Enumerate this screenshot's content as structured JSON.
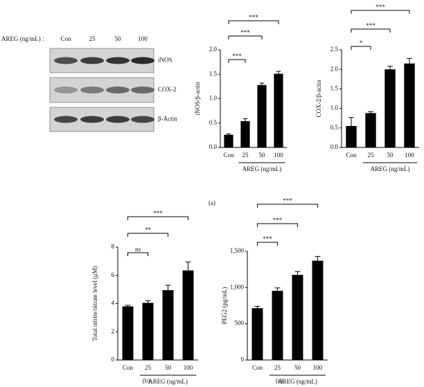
{
  "blot": {
    "dose_label": "AREG (ng/mL) :",
    "lanes": [
      "Con",
      "25",
      "50",
      "100"
    ],
    "rows": [
      "iNOS",
      "COX-2",
      "β-Actin"
    ]
  },
  "panel_labels": [
    "(a)",
    "(b)",
    "(c)"
  ],
  "chart_data": [
    {
      "type": "bar",
      "ylabel": "iNOS/β-actin",
      "xlabel": "AREG (ng/mL)",
      "categories": [
        "Con",
        "25",
        "50",
        "100"
      ],
      "values": [
        0.26,
        0.54,
        1.28,
        1.51
      ],
      "errors": [
        0.02,
        0.05,
        0.04,
        0.05
      ],
      "significance": [
        null,
        "***",
        "***",
        "***"
      ],
      "color": "#000000",
      "ylim": [
        0,
        2
      ],
      "yticks": [
        {
          "value": 0,
          "label": "0.0"
        },
        0.5,
        {
          "value": 1,
          "label": "1.0"
        },
        1.5,
        {
          "value": 2,
          "label": "2.0"
        }
      ]
    },
    {
      "type": "bar",
      "ylabel": "COX-2/β-actin",
      "xlabel": "AREG (ng/mL)",
      "categories": [
        "Con",
        "25",
        "50",
        "100"
      ],
      "values": [
        0.55,
        0.88,
        2.0,
        2.15
      ],
      "errors": [
        0.22,
        0.04,
        0.08,
        0.13
      ],
      "significance": [
        null,
        "*",
        "***",
        "***"
      ],
      "color": "#000000",
      "ylim": [
        0,
        2.5
      ],
      "yticks": [
        {
          "value": 0,
          "label": "0.0"
        },
        0.5,
        {
          "value": 1,
          "label": "1.0"
        },
        1.5,
        {
          "value": 2,
          "label": "2.0"
        },
        2.5
      ]
    },
    {
      "type": "bar",
      "ylabel": "Total nitrite/nitrate level (μM)",
      "xlabel": "AREG (ng/mL)",
      "categories": [
        "Con",
        "25",
        "50",
        "100"
      ],
      "values": [
        3.8,
        4.05,
        4.95,
        6.35
      ],
      "errors": [
        0.08,
        0.15,
        0.35,
        0.6
      ],
      "significance": [
        null,
        "ns",
        "**",
        "***"
      ],
      "color": "#000000",
      "ylim": [
        0,
        8
      ],
      "yticks": [
        0,
        2,
        4,
        6,
        8
      ]
    },
    {
      "type": "bar",
      "ylabel": "PEG2 (pg/mL)",
      "xlabel": "AREG (ng/mL)",
      "categories": [
        "Con",
        "25",
        "50",
        "100"
      ],
      "values": [
        715,
        955,
        1175,
        1370
      ],
      "errors": [
        25,
        40,
        45,
        60
      ],
      "significance": [
        null,
        "***",
        "***",
        "***"
      ],
      "color": "#000000",
      "ylim": [
        0,
        1500
      ],
      "yticks": [
        0,
        500,
        {
          "value": 1000,
          "label": "1,000"
        },
        {
          "value": 1500,
          "label": "1,500"
        }
      ]
    }
  ]
}
